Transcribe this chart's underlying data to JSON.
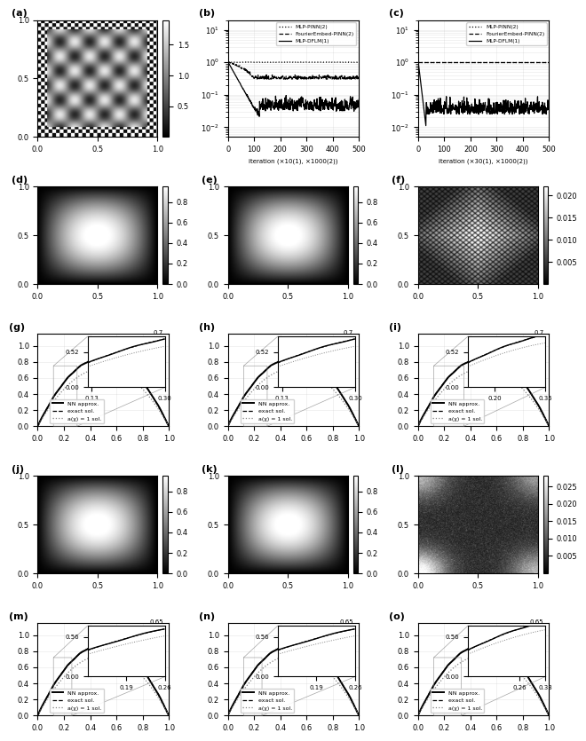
{
  "fig_width": 6.4,
  "fig_height": 8.25,
  "panel_labels": [
    "(a)",
    "(b)",
    "(c)",
    "(d)",
    "(e)",
    "(f)",
    "(g)",
    "(h)",
    "(i)",
    "(j)",
    "(k)",
    "(l)",
    "(m)",
    "(n)",
    "(o)"
  ],
  "colorbar_ticks_a": [
    0.5,
    1.0,
    1.5
  ],
  "colorbar_ticks_def": [
    0.0,
    0.2,
    0.4,
    0.6,
    0.8
  ],
  "colorbar_ticks_f": [
    0.005,
    0.01,
    0.015,
    0.02
  ],
  "colorbar_ticks_l": [
    0.005,
    0.01,
    0.015,
    0.02,
    0.025
  ],
  "line_labels": [
    "MLP-PINN(2)",
    "FourierEmbed-PINN(2)",
    "MLP-DFLM(1)"
  ],
  "xlabel_b": "iteration (×10(1), ×1000(2))",
  "xlabel_c": "iteration (×30(1), ×1000(2))",
  "curve_labels": [
    "NN approx.",
    "exact sol.",
    "a(χ) = 1 sol."
  ]
}
